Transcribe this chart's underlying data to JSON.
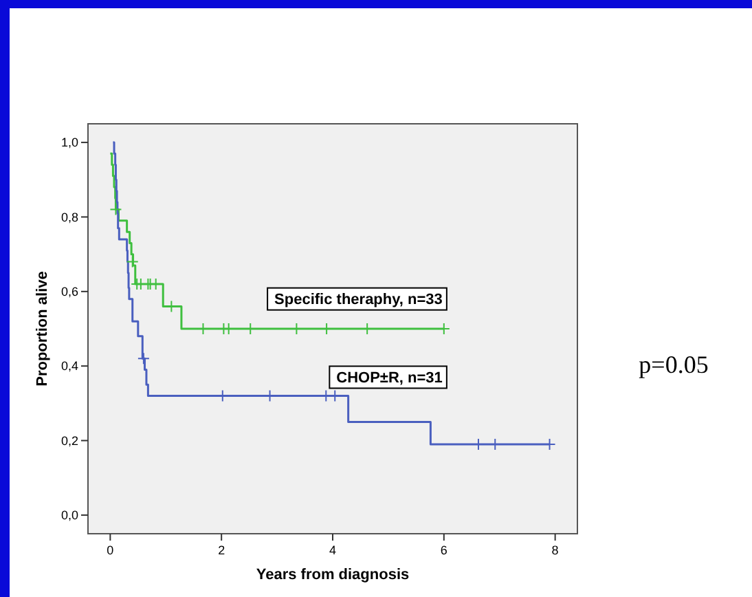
{
  "chart_data": {
    "type": "step",
    "xlabel": "Years from diagnosis",
    "ylabel": "Proportion alive",
    "xlim": [
      -0.4,
      8.4
    ],
    "ylim": [
      -0.05,
      1.05
    ],
    "xticks": [
      0,
      2,
      4,
      6,
      8
    ],
    "yticks": [
      {
        "value": 0,
        "label": "0,0"
      },
      {
        "value": 0.2,
        "label": "0,2"
      },
      {
        "value": 0.4,
        "label": "0,4"
      },
      {
        "value": 0.6,
        "label": "0,6"
      },
      {
        "value": 0.8,
        "label": "0,8"
      },
      {
        "value": 1,
        "label": "1,0"
      }
    ],
    "grid": false,
    "annotations": [
      "p=0.05"
    ],
    "series": [
      {
        "name": "Specific theraphy, n=33",
        "color": "#3fbf3f",
        "x": [
          0,
          0.03,
          0.05,
          0.07,
          0.09,
          0.1,
          0.15,
          0.3,
          0.35,
          0.38,
          0.41,
          0.45,
          0.95,
          1.28,
          6.0
        ],
        "values": [
          0.97,
          0.94,
          0.91,
          0.88,
          0.85,
          0.82,
          0.79,
          0.76,
          0.73,
          0.7,
          0.67,
          0.62,
          0.56,
          0.5,
          0.5
        ]
      },
      {
        "name": "CHOP±R, n=31",
        "color": "#4a5fbf",
        "x": [
          0.05,
          0.07,
          0.09,
          0.1,
          0.11,
          0.12,
          0.13,
          0.14,
          0.16,
          0.3,
          0.31,
          0.32,
          0.33,
          0.34,
          0.4,
          0.5,
          0.58,
          0.62,
          0.65,
          0.68,
          4.28,
          5.76,
          7.9
        ],
        "values": [
          1.0,
          0.97,
          0.94,
          0.9,
          0.87,
          0.84,
          0.81,
          0.77,
          0.74,
          0.71,
          0.68,
          0.65,
          0.61,
          0.58,
          0.52,
          0.48,
          0.42,
          0.39,
          0.35,
          0.32,
          0.25,
          0.19,
          0.19
        ]
      },
      {
        "type": "scatter",
        "marker": "cross",
        "color": "#3fbf3f",
        "x": [
          0.1,
          0.4,
          0.48,
          0.55,
          0.68,
          0.72,
          0.82,
          1.1,
          1.67,
          2.04,
          2.13,
          2.52,
          3.35,
          3.89,
          4.62,
          6.0
        ],
        "values": [
          0.82,
          0.68,
          0.62,
          0.62,
          0.62,
          0.62,
          0.62,
          0.56,
          0.5,
          0.5,
          0.5,
          0.5,
          0.5,
          0.5,
          0.5,
          0.5
        ]
      },
      {
        "type": "scatter",
        "marker": "cross",
        "color": "#4a5fbf",
        "x": [
          0.6,
          2.02,
          2.87,
          3.88,
          4.04,
          6.62,
          6.92,
          7.9
        ],
        "values": [
          0.42,
          0.32,
          0.32,
          0.32,
          0.32,
          0.19,
          0.19,
          0.19
        ]
      }
    ]
  }
}
